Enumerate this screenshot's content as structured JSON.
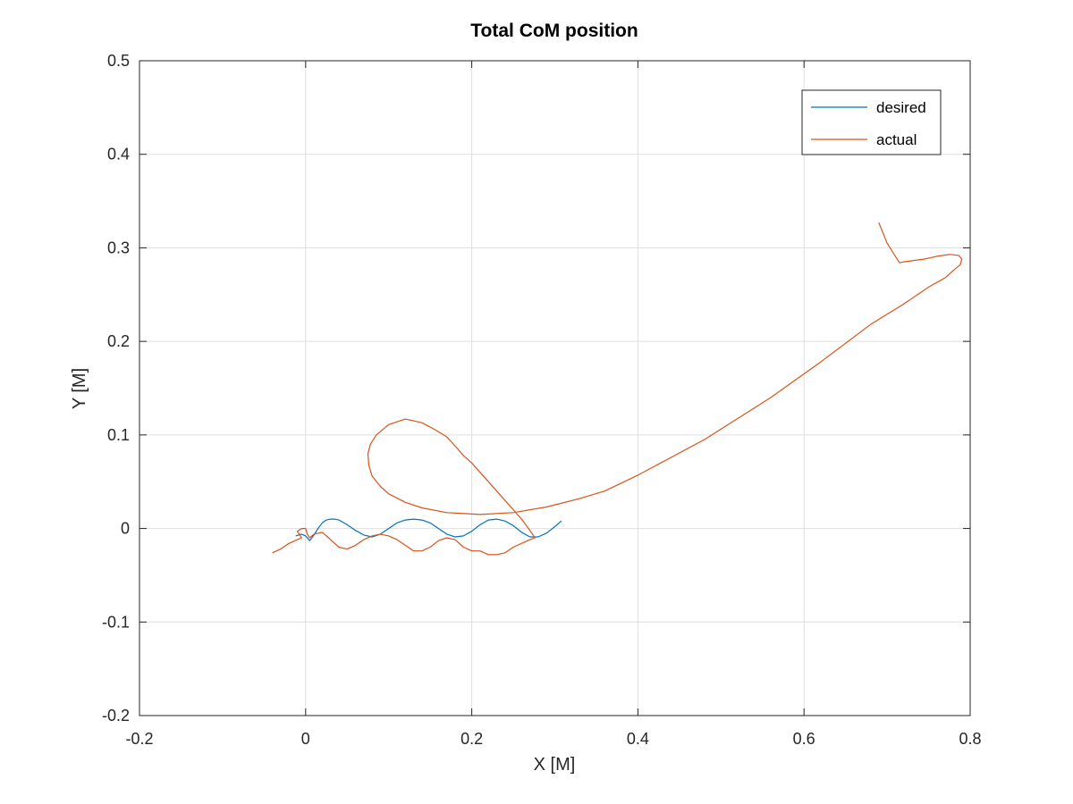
{
  "chart_data": {
    "type": "line",
    "title": "Total CoM position",
    "xlabel": "X [M]",
    "ylabel": "Y [M]",
    "xlim": [
      -0.2,
      0.8
    ],
    "ylim": [
      -0.2,
      0.5
    ],
    "xticks": [
      -0.2,
      0,
      0.2,
      0.4,
      0.6,
      0.8
    ],
    "xtick_labels": [
      "-0.2",
      "0",
      "0.2",
      "0.4",
      "0.6",
      "0.8"
    ],
    "yticks": [
      -0.2,
      -0.1,
      0,
      0.1,
      0.2,
      0.3,
      0.4,
      0.5
    ],
    "ytick_labels": [
      "-0.2",
      "-0.1",
      "0",
      "0.1",
      "0.2",
      "0.3",
      "0.4",
      "0.5"
    ],
    "grid": true,
    "legend": "top-right",
    "series": [
      {
        "name": "desired",
        "color": "#0072BD",
        "x": [
          -0.012,
          -0.005,
          0.0,
          0.005,
          0.01,
          0.015,
          0.02,
          0.025,
          0.03,
          0.035,
          0.04,
          0.05,
          0.06,
          0.07,
          0.08,
          0.09,
          0.1,
          0.11,
          0.12,
          0.13,
          0.14,
          0.15,
          0.16,
          0.17,
          0.18,
          0.19,
          0.2,
          0.21,
          0.22,
          0.23,
          0.24,
          0.25,
          0.26,
          0.27,
          0.28,
          0.29,
          0.3,
          0.308
        ],
        "y": [
          -0.008,
          -0.006,
          -0.008,
          -0.013,
          -0.007,
          0.0,
          0.006,
          0.009,
          0.01,
          0.01,
          0.009,
          0.004,
          -0.002,
          -0.007,
          -0.009,
          -0.006,
          0.0,
          0.006,
          0.009,
          0.01,
          0.009,
          0.006,
          0.0,
          -0.006,
          -0.009,
          -0.008,
          -0.003,
          0.004,
          0.009,
          0.01,
          0.008,
          0.003,
          -0.004,
          -0.009,
          -0.009,
          -0.005,
          0.002,
          0.008
        ]
      },
      {
        "name": "actual",
        "color": "#D95319",
        "x": [
          -0.04,
          -0.03,
          -0.02,
          -0.01,
          -0.005,
          -0.01,
          -0.005,
          0.0,
          0.002,
          0.005,
          0.01,
          0.02,
          0.03,
          0.04,
          0.05,
          0.06,
          0.07,
          0.08,
          0.09,
          0.1,
          0.11,
          0.12,
          0.13,
          0.14,
          0.15,
          0.16,
          0.17,
          0.18,
          0.19,
          0.2,
          0.21,
          0.22,
          0.23,
          0.24,
          0.25,
          0.26,
          0.27,
          0.276,
          0.27,
          0.26,
          0.24,
          0.22,
          0.2,
          0.19,
          0.18,
          0.17,
          0.155,
          0.14,
          0.12,
          0.1,
          0.085,
          0.078,
          0.075,
          0.076,
          0.08,
          0.09,
          0.1,
          0.12,
          0.14,
          0.17,
          0.21,
          0.25,
          0.29,
          0.33,
          0.36,
          0.4,
          0.48,
          0.56,
          0.62,
          0.68,
          0.72,
          0.75,
          0.77,
          0.78,
          0.788,
          0.79,
          0.786,
          0.775,
          0.76,
          0.745,
          0.72,
          0.715,
          0.7,
          0.69
        ],
        "y": [
          -0.026,
          -0.022,
          -0.016,
          -0.012,
          -0.01,
          -0.003,
          0.0,
          0.0,
          -0.006,
          -0.01,
          -0.006,
          -0.004,
          -0.012,
          -0.02,
          -0.022,
          -0.018,
          -0.012,
          -0.008,
          -0.006,
          -0.008,
          -0.012,
          -0.018,
          -0.024,
          -0.024,
          -0.02,
          -0.013,
          -0.01,
          -0.012,
          -0.02,
          -0.024,
          -0.024,
          -0.028,
          -0.028,
          -0.026,
          -0.02,
          -0.016,
          -0.012,
          -0.01,
          -0.002,
          0.01,
          0.03,
          0.05,
          0.07,
          0.078,
          0.088,
          0.098,
          0.106,
          0.113,
          0.117,
          0.111,
          0.1,
          0.09,
          0.08,
          0.068,
          0.056,
          0.045,
          0.037,
          0.028,
          0.022,
          0.017,
          0.015,
          0.017,
          0.023,
          0.032,
          0.04,
          0.057,
          0.095,
          0.14,
          0.178,
          0.218,
          0.24,
          0.258,
          0.268,
          0.276,
          0.282,
          0.288,
          0.292,
          0.293,
          0.291,
          0.288,
          0.285,
          0.284,
          0.305,
          0.327
        ]
      }
    ]
  }
}
